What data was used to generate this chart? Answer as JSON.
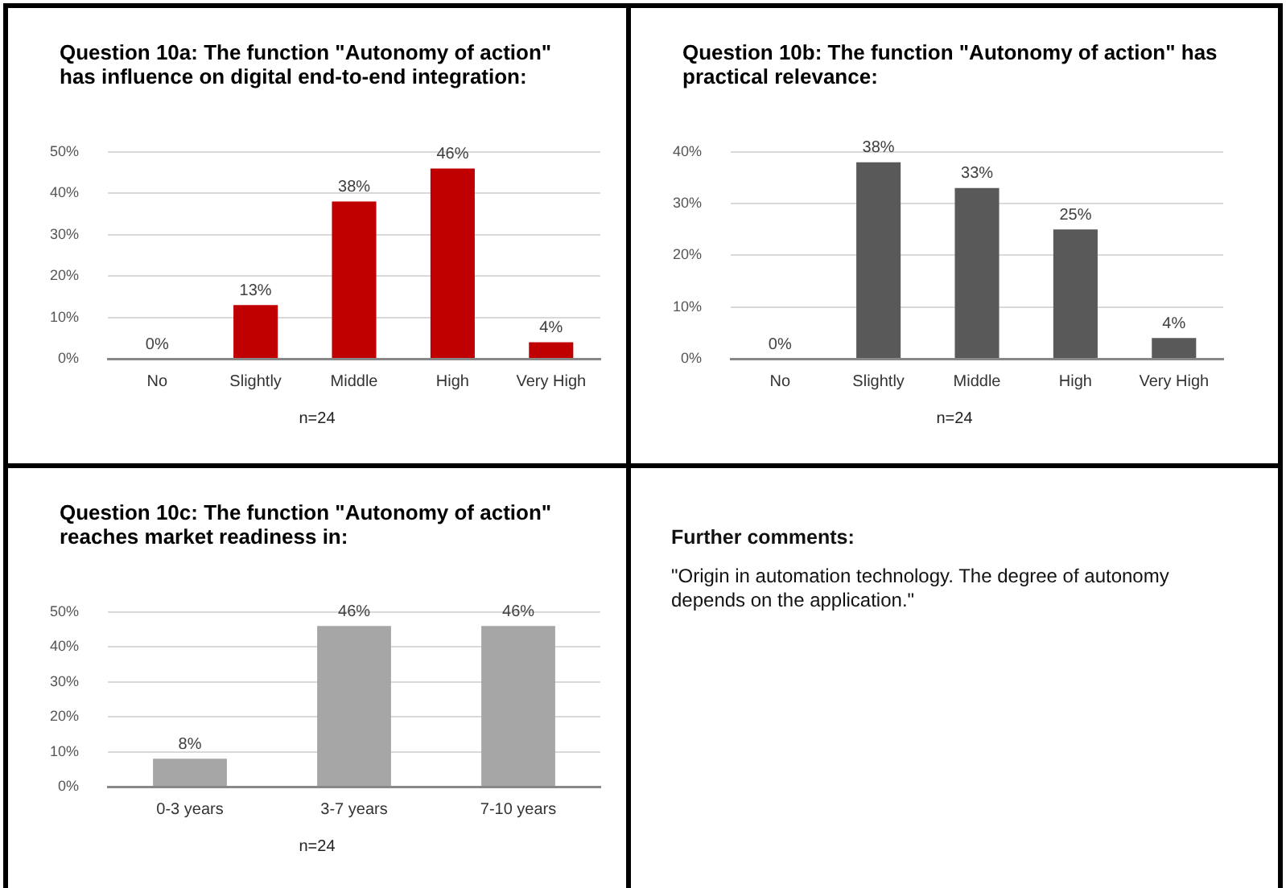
{
  "chart_data": [
    {
      "type": "bar",
      "title": "Question 10a: The function \"Autonomy of action\" has influence on digital end-to-end integration:",
      "categories": [
        "No",
        "Slightly",
        "Middle",
        "High",
        "Very High"
      ],
      "values": [
        0,
        13,
        38,
        46,
        4
      ],
      "value_labels": [
        "0%",
        "13%",
        "38%",
        "46%",
        "4%"
      ],
      "color": "#c00000",
      "ylim": [
        0,
        50
      ],
      "yticks": [
        {
          "value": 0,
          "label": "0%"
        },
        {
          "value": 10,
          "label": "10%"
        },
        {
          "value": 20,
          "label": "20%"
        },
        {
          "value": 30,
          "label": "30%"
        },
        {
          "value": 40,
          "label": "40%"
        },
        {
          "value": 50,
          "label": "50%"
        }
      ],
      "grid": "y",
      "annotations": [
        "n=24"
      ]
    },
    {
      "type": "bar",
      "title": "Question 10b: The function \"Autonomy of action\" has practical relevance:",
      "categories": [
        "No",
        "Slightly",
        "Middle",
        "High",
        "Very High"
      ],
      "values": [
        0,
        38,
        33,
        25,
        4
      ],
      "value_labels": [
        "0%",
        "38%",
        "33%",
        "25%",
        "4%"
      ],
      "color": "#595959",
      "ylim": [
        0,
        40
      ],
      "yticks": [
        {
          "value": 0,
          "label": "0%"
        },
        {
          "value": 10,
          "label": "10%"
        },
        {
          "value": 20,
          "label": "20%"
        },
        {
          "value": 30,
          "label": "30%"
        },
        {
          "value": 40,
          "label": "40%"
        }
      ],
      "grid": "y",
      "annotations": [
        "n=24"
      ]
    },
    {
      "type": "bar",
      "title": "Question 10c: The function \"Autonomy of action\" reaches market readiness in:",
      "categories": [
        "0-3 years",
        "3-7 years",
        "7-10 years"
      ],
      "values": [
        8,
        46,
        46
      ],
      "value_labels": [
        "8%",
        "46%",
        "46%"
      ],
      "color": "#a6a6a6",
      "ylim": [
        0,
        50
      ],
      "yticks": [
        {
          "value": 0,
          "label": "0%"
        },
        {
          "value": 10,
          "label": "10%"
        },
        {
          "value": 20,
          "label": "20%"
        },
        {
          "value": 30,
          "label": "30%"
        },
        {
          "value": 40,
          "label": "40%"
        },
        {
          "value": 50,
          "label": "50%"
        }
      ],
      "grid": "y",
      "annotations": [
        "n=24"
      ]
    },
    {
      "type": "other",
      "title": "Further comments:",
      "annotations": [
        "\"Origin in automation technology. The degree of autonomy depends on the application.\""
      ]
    }
  ]
}
